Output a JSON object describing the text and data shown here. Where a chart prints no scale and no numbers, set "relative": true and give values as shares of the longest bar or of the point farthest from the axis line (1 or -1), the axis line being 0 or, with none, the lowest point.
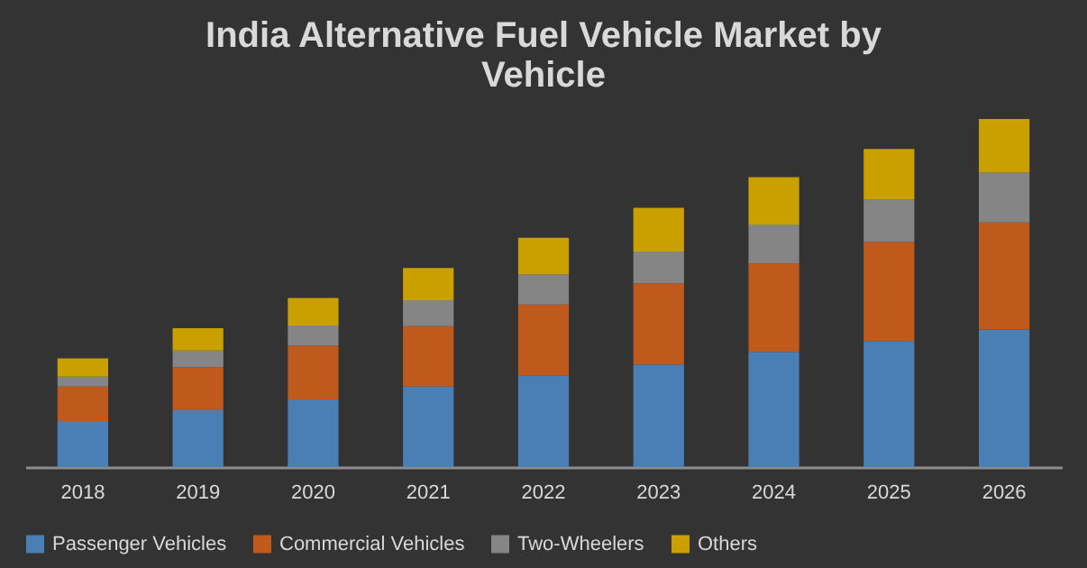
{
  "chart_data": {
    "type": "bar",
    "title": "India Alternative Fuel Vehicle Market by Vehicle",
    "relative": true,
    "stacked": true,
    "legend": "bottom",
    "categories": [
      "2018",
      "2019",
      "2020",
      "2021",
      "2022",
      "2023",
      "2024",
      "2025",
      "2026"
    ],
    "series": [
      {
        "name": "Passenger Vehicles",
        "color": "#4a7fb5",
        "values": [
          0.132,
          0.163,
          0.194,
          0.231,
          0.262,
          0.295,
          0.331,
          0.362,
          0.395
        ]
      },
      {
        "name": "Commercial Vehicles",
        "color": "#c0591c",
        "values": [
          0.099,
          0.124,
          0.155,
          0.174,
          0.205,
          0.233,
          0.254,
          0.285,
          0.308
        ]
      },
      {
        "name": "Two-Wheelers",
        "color": "#858585",
        "values": [
          0.029,
          0.048,
          0.058,
          0.074,
          0.087,
          0.091,
          0.112,
          0.122,
          0.143
        ]
      },
      {
        "name": "Others",
        "color": "#c9a000",
        "values": [
          0.052,
          0.064,
          0.079,
          0.093,
          0.105,
          0.126,
          0.136,
          0.145,
          0.154
        ]
      }
    ]
  }
}
